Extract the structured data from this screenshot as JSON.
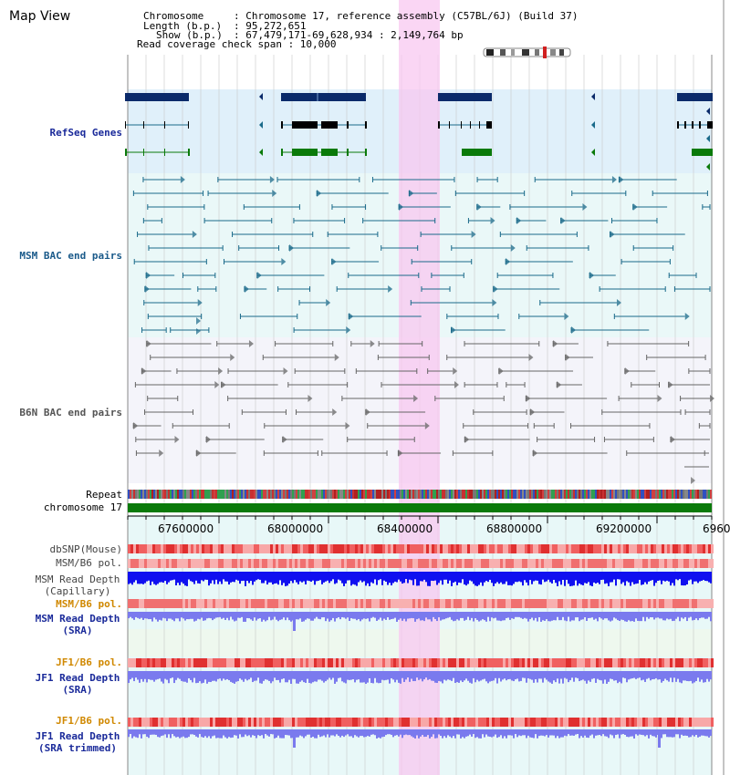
{
  "view_title": "Map View",
  "info": {
    "chromosome_key": "Chromosome",
    "chromosome_val": ": Chromosome 17, reference assembly (C57BL/6J) (Build 37)",
    "length_key": "Length (b.p.)",
    "length_val": ": 95,272,651",
    "show_key": "Show (b.p.)",
    "show_val": ": 67,479,171-69,628,934 : 2,149,764 bp",
    "coverage": "Read coverage check span : 10,000"
  },
  "tracks": {
    "refseq": "RefSeq Genes",
    "msm_bac": "MSM BAC end pairs",
    "b6n_bac": "B6N BAC end pairs",
    "repeat": "Repeat",
    "chromosome": "chromosome 17",
    "dbsnp": "dbSNP(Mouse)",
    "msm_b6_pol_1": "MSM/B6 pol.",
    "msm_depth_cap_1": "MSM Read Depth",
    "msm_depth_cap_2": "(Capillary)",
    "msm_b6_pol_2": "MSM/B6 pol.",
    "msm_depth_sra_1": "MSM Read Depth",
    "msm_depth_sra_2": "(SRA)",
    "jf1_b6_pol_1": "JF1/B6 pol.",
    "jf1_depth_sra_1": "JF1 Read Depth",
    "jf1_depth_sra_2": "(SRA)",
    "jf1_b6_pol_2": "JF1/B6 pol.",
    "jf1_depth_trim_1": "JF1 Read Depth",
    "jf1_depth_trim_2": "(SRA trimmed)"
  },
  "axis": {
    "ticks": [
      "67600000",
      "68000000",
      "68400000",
      "68800000",
      "69200000",
      "6960"
    ]
  },
  "colors": {
    "gene_navy": "#0a2a6a",
    "gene_green": "#0a7a0a",
    "msm_teal": "#1a6a8a",
    "b6n_gray": "#666666",
    "highlight": "#f8c8f0",
    "label_blue": "#1a2a9a",
    "label_teal": "#1a5a8a",
    "label_orange": "#d08800",
    "depth_blue": "#1010f0",
    "depth_light": "#7a7aee"
  }
}
